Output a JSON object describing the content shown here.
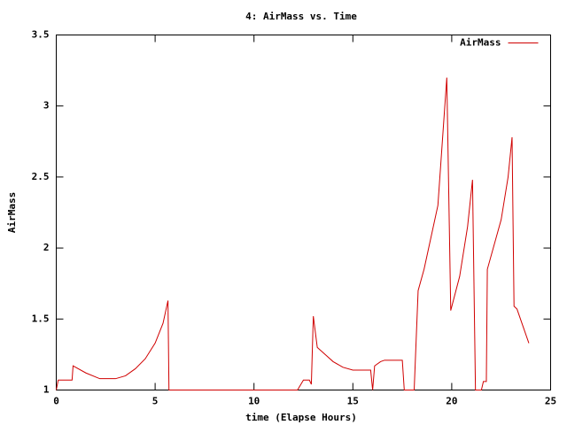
{
  "chart_data": {
    "type": "line",
    "title": "4: AirMass vs. Time",
    "xlabel": "time (Elapse Hours)",
    "ylabel": "AirMass",
    "x": [
      0,
      0.1,
      0.8,
      0.85,
      1.5,
      2.2,
      3,
      3.5,
      4,
      4.5,
      5,
      5.4,
      5.65,
      5.7,
      12.2,
      12.5,
      12.8,
      12.9,
      13.0,
      13.2,
      13.6,
      14,
      14.5,
      15,
      15.9,
      16,
      16.1,
      16.4,
      16.6,
      17.5,
      17.6,
      18.1,
      18.3,
      18.6,
      19.3,
      19.75,
      19.95,
      20.4,
      20.8,
      21.05,
      21.2,
      21.5,
      21.6,
      21.75,
      21.8,
      22.2,
      22.5,
      22.85,
      23.05,
      23.15,
      23.3,
      23.6,
      23.9
    ],
    "series": [
      {
        "name": "AirMass",
        "color": "#d00000",
        "values": [
          1,
          1.07,
          1.07,
          1.17,
          1.12,
          1.08,
          1.08,
          1.1,
          1.15,
          1.22,
          1.33,
          1.47,
          1.63,
          1,
          1,
          1.07,
          1.07,
          1.04,
          1.52,
          1.3,
          1.25,
          1.2,
          1.16,
          1.14,
          1.14,
          1,
          1.17,
          1.2,
          1.21,
          1.21,
          1,
          1,
          1.7,
          1.85,
          2.3,
          3.2,
          1.56,
          1.8,
          2.15,
          2.48,
          1,
          1,
          1.06,
          1.06,
          1.85,
          2.05,
          2.2,
          2.5,
          2.78,
          1.59,
          1.57,
          1.45,
          1.33
        ]
      }
    ],
    "xlim": [
      0,
      25
    ],
    "xticks": [
      0,
      5,
      10,
      15,
      20,
      25
    ],
    "ylim": [
      1,
      3.5
    ],
    "yticks": [
      1,
      1.5,
      2,
      2.5,
      3,
      3.5
    ],
    "legend": "top right",
    "grid": false
  }
}
